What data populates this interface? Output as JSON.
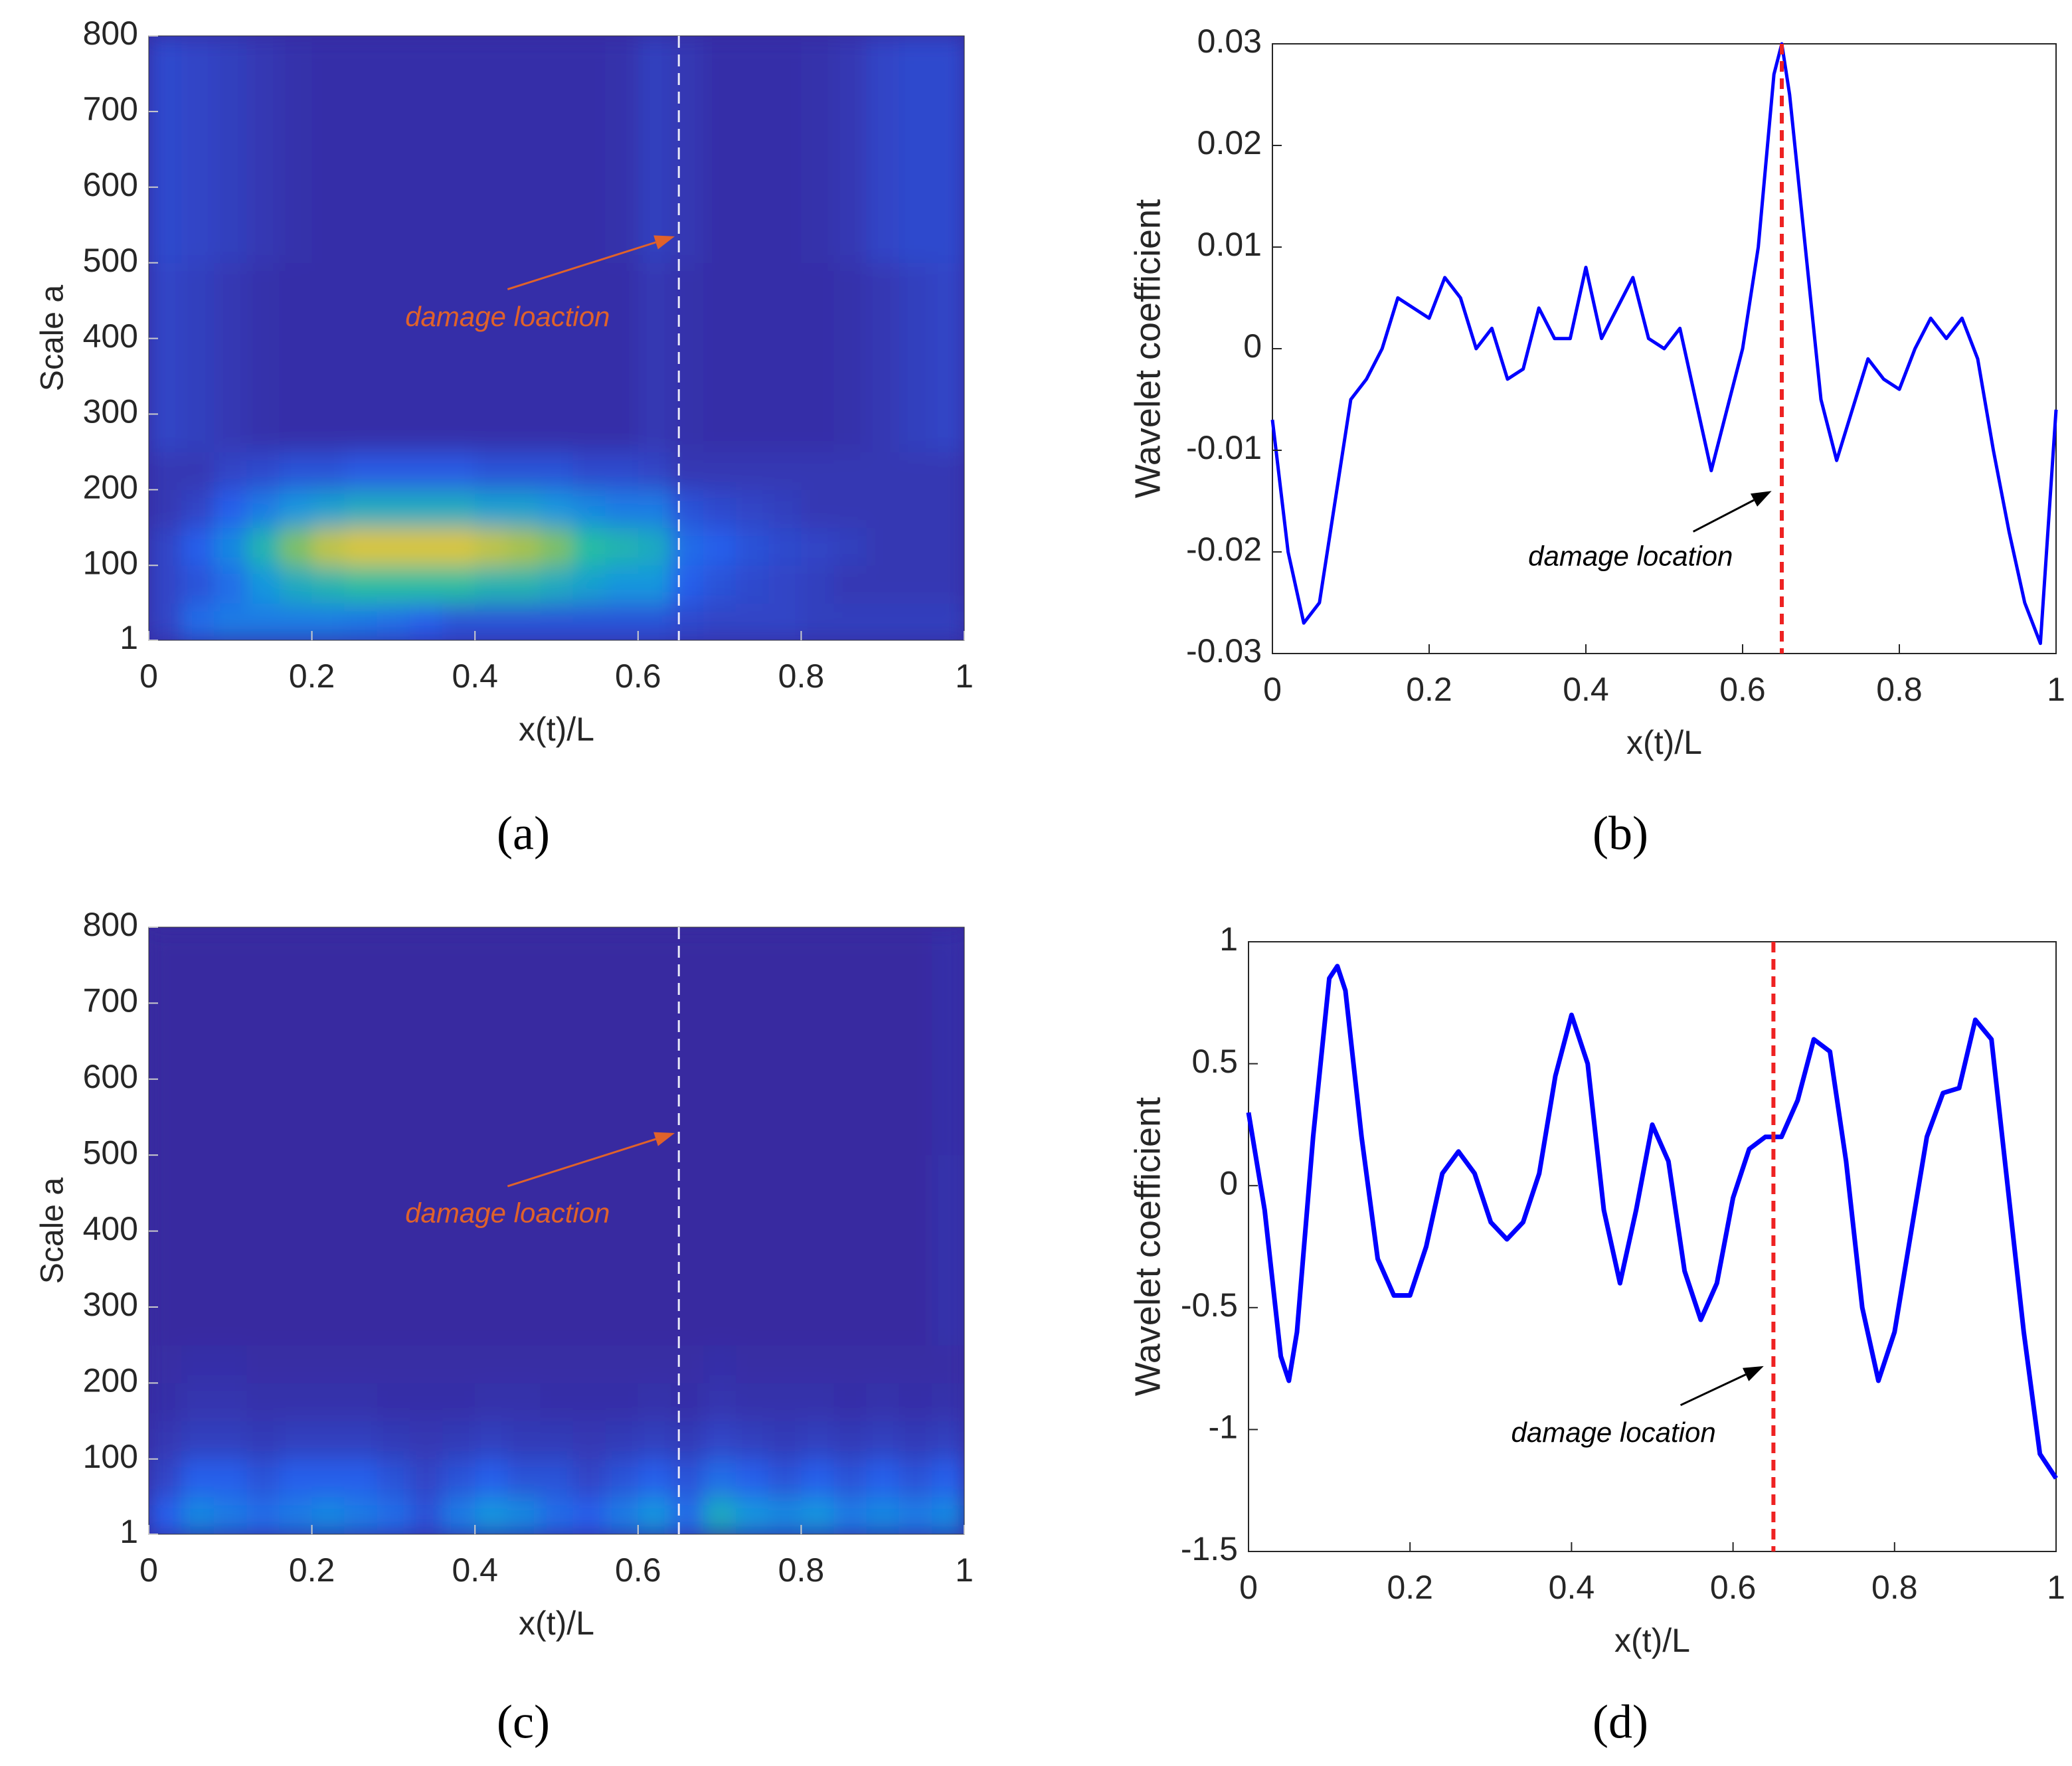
{
  "chart_data": [
    {
      "type": "heatmap",
      "panel_label": "(a)",
      "xlabel": "x(t)/L",
      "ylabel": "Scale a",
      "xlim": [
        0,
        1
      ],
      "ylim": [
        1,
        800
      ],
      "xticks": [
        0,
        0.2,
        0.4,
        0.6,
        0.8,
        1
      ],
      "yticks": [
        1,
        100,
        200,
        300,
        400,
        500,
        600,
        700,
        800
      ],
      "zlim": [
        0,
        1
      ],
      "xbins": [
        0,
        0.04,
        0.08,
        0.12,
        0.16,
        0.2,
        0.24,
        0.28,
        0.32,
        0.36,
        0.4,
        0.44,
        0.48,
        0.52,
        0.56,
        0.6,
        0.64,
        0.68,
        0.72,
        0.76,
        0.8,
        0.84,
        0.88,
        0.92,
        0.96,
        1
      ],
      "ybins": [
        1,
        50,
        100,
        150,
        200,
        250,
        500,
        800
      ],
      "z": [
        [
          0.1,
          0.25,
          0.3,
          0.3,
          0.3,
          0.3,
          0.28,
          0.25,
          0.2,
          0.15,
          0.15,
          0.15,
          0.15,
          0.15,
          0.15,
          0.15,
          0.12,
          0.1,
          0.1,
          0.1,
          0.08,
          0.08,
          0.08,
          0.08,
          0.08
        ],
        [
          0.1,
          0.15,
          0.25,
          0.4,
          0.5,
          0.55,
          0.6,
          0.6,
          0.6,
          0.6,
          0.55,
          0.55,
          0.5,
          0.45,
          0.4,
          0.4,
          0.2,
          0.15,
          0.12,
          0.1,
          0.08,
          0.05,
          0.05,
          0.05,
          0.05
        ],
        [
          0.1,
          0.2,
          0.35,
          0.55,
          0.7,
          0.8,
          0.85,
          0.85,
          0.85,
          0.85,
          0.8,
          0.75,
          0.7,
          0.6,
          0.55,
          0.5,
          0.25,
          0.2,
          0.15,
          0.12,
          0.1,
          0.08,
          0.05,
          0.05,
          0.05
        ],
        [
          0.05,
          0.1,
          0.2,
          0.3,
          0.4,
          0.45,
          0.5,
          0.5,
          0.5,
          0.5,
          0.45,
          0.45,
          0.4,
          0.35,
          0.3,
          0.3,
          0.15,
          0.12,
          0.1,
          0.08,
          0.05,
          0.05,
          0.05,
          0.05,
          0.05
        ],
        [
          0.05,
          0.05,
          0.1,
          0.12,
          0.15,
          0.15,
          0.18,
          0.18,
          0.18,
          0.18,
          0.15,
          0.15,
          0.15,
          0.12,
          0.12,
          0.1,
          0.05,
          0.05,
          0.05,
          0.05,
          0.05,
          0.05,
          0.05,
          0.05,
          0.05
        ],
        [
          0.1,
          0.08,
          0.05,
          0.03,
          0.02,
          0.02,
          0.02,
          0.02,
          0.02,
          0.02,
          0.02,
          0.02,
          0.02,
          0.02,
          0.02,
          0.05,
          0.03,
          0.02,
          0.02,
          0.02,
          0.02,
          0.03,
          0.05,
          0.08,
          0.1
        ],
        [
          0.12,
          0.1,
          0.08,
          0.05,
          0.03,
          0.02,
          0.02,
          0.02,
          0.02,
          0.02,
          0.02,
          0.02,
          0.02,
          0.02,
          0.03,
          0.08,
          0.05,
          0.02,
          0.02,
          0.02,
          0.03,
          0.05,
          0.1,
          0.12,
          0.12
        ]
      ],
      "vline": {
        "x": 0.65,
        "color": "#e8e8f8"
      },
      "annotation": {
        "text": "damage loaction",
        "x": 0.44,
        "y": 426,
        "arrow": [
          0.44,
          465,
          0.645,
          535
        ],
        "color": "#e0622a"
      }
    },
    {
      "type": "line",
      "panel_label": "(b)",
      "xlabel": "x(t)/L",
      "ylabel": "Wavelet coefficient",
      "xlim": [
        0,
        1
      ],
      "ylim": [
        -0.03,
        0.03
      ],
      "xticks": [
        0,
        0.2,
        0.4,
        0.6,
        0.8,
        1
      ],
      "yticks": [
        -0.03,
        -0.02,
        -0.01,
        0,
        0.01,
        0.02,
        0.03
      ],
      "x": [
        0,
        0.02,
        0.04,
        0.06,
        0.08,
        0.1,
        0.12,
        0.14,
        0.16,
        0.18,
        0.2,
        0.22,
        0.24,
        0.26,
        0.28,
        0.3,
        0.32,
        0.34,
        0.36,
        0.38,
        0.4,
        0.42,
        0.44,
        0.46,
        0.48,
        0.5,
        0.52,
        0.54,
        0.56,
        0.58,
        0.6,
        0.62,
        0.64,
        0.65,
        0.66,
        0.68,
        0.7,
        0.72,
        0.74,
        0.76,
        0.78,
        0.8,
        0.82,
        0.84,
        0.86,
        0.88,
        0.9,
        0.92,
        0.94,
        0.96,
        0.98,
        1
      ],
      "series": [
        {
          "color": "#0000ff",
          "values": [
            -0.007,
            -0.02,
            -0.027,
            -0.025,
            -0.015,
            -0.005,
            -0.003,
            0,
            0.005,
            0.004,
            0.003,
            0.007,
            0.005,
            0,
            0.002,
            -0.003,
            -0.002,
            0.004,
            0.001,
            0.001,
            0.008,
            0.001,
            0.004,
            0.007,
            0.001,
            0,
            0.002,
            -0.005,
            -0.012,
            -0.006,
            0,
            0.01,
            0.027,
            0.03,
            0.025,
            0.01,
            -0.005,
            -0.011,
            -0.006,
            -0.001,
            -0.003,
            -0.004,
            0,
            0.003,
            0.001,
            0.003,
            -0.001,
            -0.01,
            -0.018,
            -0.025,
            -0.029,
            -0.006
          ]
        }
      ],
      "vline": {
        "x": 0.65,
        "color": "#ee2222"
      },
      "annotation": {
        "text": "damage location",
        "x": 0.457,
        "y": -0.0206,
        "arrow": [
          0.537,
          -0.018,
          0.637,
          -0.014
        ],
        "color": "#000000"
      }
    },
    {
      "type": "heatmap",
      "panel_label": "(c)",
      "xlabel": "x(t)/L",
      "ylabel": "Scale a",
      "xlim": [
        0,
        1
      ],
      "ylim": [
        1,
        800
      ],
      "xticks": [
        0,
        0.2,
        0.4,
        0.6,
        0.8,
        1
      ],
      "yticks": [
        1,
        100,
        200,
        300,
        400,
        500,
        600,
        700,
        800
      ],
      "zlim": [
        0,
        1
      ],
      "xbins": [
        0,
        0.04,
        0.08,
        0.12,
        0.16,
        0.2,
        0.24,
        0.28,
        0.32,
        0.36,
        0.4,
        0.44,
        0.48,
        0.52,
        0.56,
        0.6,
        0.64,
        0.68,
        0.72,
        0.76,
        0.8,
        0.84,
        0.88,
        0.92,
        0.96,
        1
      ],
      "ybins": [
        1,
        50,
        100,
        150,
        200,
        250,
        500,
        800
      ],
      "z": [
        [
          0.2,
          0.35,
          0.3,
          0.25,
          0.3,
          0.35,
          0.3,
          0.25,
          0.15,
          0.3,
          0.4,
          0.35,
          0.25,
          0.2,
          0.3,
          0.4,
          0.25,
          0.5,
          0.4,
          0.35,
          0.4,
          0.3,
          0.35,
          0.3,
          0.35
        ],
        [
          0.1,
          0.2,
          0.2,
          0.15,
          0.2,
          0.2,
          0.2,
          0.15,
          0.1,
          0.15,
          0.2,
          0.15,
          0.15,
          0.1,
          0.15,
          0.2,
          0.15,
          0.25,
          0.2,
          0.15,
          0.2,
          0.15,
          0.2,
          0.15,
          0.2
        ],
        [
          0.05,
          0.08,
          0.08,
          0.06,
          0.08,
          0.08,
          0.08,
          0.06,
          0.05,
          0.06,
          0.08,
          0.06,
          0.06,
          0.05,
          0.06,
          0.08,
          0.06,
          0.1,
          0.08,
          0.06,
          0.08,
          0.06,
          0.08,
          0.06,
          0.08
        ],
        [
          0.02,
          0.04,
          0.04,
          0.03,
          0.03,
          0.03,
          0.03,
          0.02,
          0.02,
          0.02,
          0.03,
          0.03,
          0.02,
          0.02,
          0.02,
          0.03,
          0.02,
          0.04,
          0.03,
          0.03,
          0.03,
          0.02,
          0.03,
          0.02,
          0.03
        ],
        [
          0.01,
          0.02,
          0.02,
          0.01,
          0.01,
          0.01,
          0.01,
          0.01,
          0.01,
          0.01,
          0.01,
          0.01,
          0.01,
          0.01,
          0.01,
          0.01,
          0.01,
          0.02,
          0.01,
          0.01,
          0.01,
          0.01,
          0.01,
          0.01,
          0.01
        ],
        [
          0,
          0,
          0,
          0,
          0,
          0,
          0,
          0,
          0,
          0,
          0,
          0,
          0,
          0,
          0,
          0,
          0,
          0,
          0,
          0,
          0,
          0,
          0,
          0,
          0.03
        ],
        [
          0,
          0,
          0,
          0,
          0,
          0,
          0,
          0,
          0,
          0,
          0,
          0,
          0,
          0,
          0,
          0,
          0,
          0,
          0,
          0,
          0,
          0,
          0,
          0,
          0.02
        ]
      ],
      "vline": {
        "x": 0.65,
        "color": "#e8e8f8"
      },
      "annotation": {
        "text": "damage loaction",
        "x": 0.44,
        "y": 421,
        "arrow": [
          0.44,
          459,
          0.645,
          529
        ],
        "color": "#e0622a"
      }
    },
    {
      "type": "line",
      "panel_label": "(d)",
      "xlabel": "x(t)/L",
      "ylabel": "Wavelet coefficient",
      "xlim": [
        0,
        1
      ],
      "ylim": [
        -1.5,
        1
      ],
      "xticks": [
        0,
        0.2,
        0.4,
        0.6,
        0.8,
        1
      ],
      "yticks": [
        -1.5,
        -1,
        -0.5,
        0,
        0.5,
        1
      ],
      "x": [
        0,
        0.02,
        0.04,
        0.05,
        0.06,
        0.08,
        0.1,
        0.11,
        0.12,
        0.14,
        0.16,
        0.18,
        0.2,
        0.22,
        0.24,
        0.26,
        0.28,
        0.3,
        0.32,
        0.34,
        0.36,
        0.38,
        0.4,
        0.42,
        0.44,
        0.46,
        0.48,
        0.5,
        0.52,
        0.54,
        0.56,
        0.58,
        0.6,
        0.62,
        0.64,
        0.66,
        0.68,
        0.7,
        0.72,
        0.74,
        0.76,
        0.78,
        0.8,
        0.82,
        0.84,
        0.86,
        0.88,
        0.9,
        0.92,
        0.94,
        0.96,
        0.98,
        1
      ],
      "series": [
        {
          "color": "#0000ff",
          "values": [
            0.3,
            -0.1,
            -0.7,
            -0.8,
            -0.6,
            0.2,
            0.85,
            0.9,
            0.8,
            0.2,
            -0.3,
            -0.45,
            -0.45,
            -0.25,
            0.05,
            0.14,
            0.05,
            -0.15,
            -0.22,
            -0.15,
            0.05,
            0.45,
            0.7,
            0.5,
            -0.1,
            -0.4,
            -0.1,
            0.25,
            0.1,
            -0.35,
            -0.55,
            -0.4,
            -0.05,
            0.15,
            0.2,
            0.2,
            0.35,
            0.6,
            0.55,
            0.1,
            -0.5,
            -0.8,
            -0.6,
            -0.2,
            0.2,
            0.38,
            0.4,
            0.68,
            0.6,
            0,
            -0.6,
            -1.1,
            -1.2
          ]
        }
      ],
      "vline": {
        "x": 0.65,
        "color": "#ee2222"
      },
      "annotation": {
        "text": "damage location",
        "x": 0.452,
        "y": -1.02,
        "arrow": [
          0.535,
          -0.9,
          0.638,
          -0.74
        ],
        "color": "#000000"
      }
    }
  ]
}
